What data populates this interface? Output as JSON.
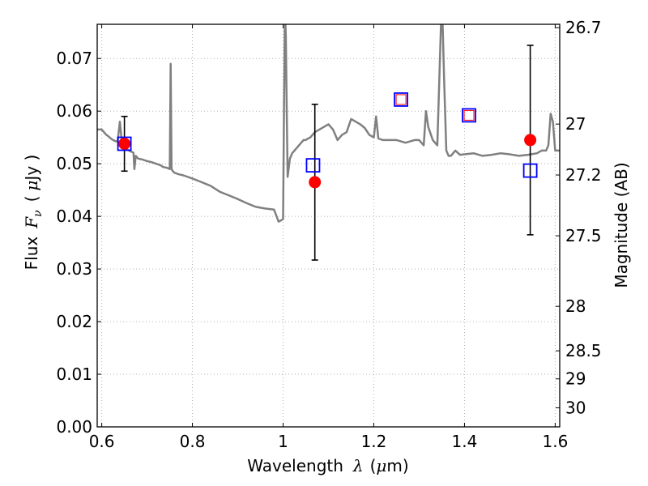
{
  "chart_data": {
    "type": "scatter",
    "xlabel_prefix": "Wavelength",
    "xlabel_symbol": "λ",
    "xlabel_unit_open": "(",
    "xlabel_unit_mu": "μ",
    "xlabel_unit_rest": "m)",
    "ylabel_prefix": "Flux",
    "ylabel_symbol_main": "F",
    "ylabel_symbol_sub": "ν",
    "ylabel_unit_open": "(",
    "ylabel_unit_mu": "μ",
    "ylabel_unit_rest": "Jy )",
    "y2label": "Magnitude (AB)",
    "xlim": [
      0.59,
      1.61
    ],
    "ylim": [
      0.0,
      0.0765
    ],
    "xticks": [
      0.6,
      0.8,
      1.0,
      1.2,
      1.4,
      1.6
    ],
    "xtick_labels": [
      "0.6",
      "0.8",
      "1",
      "1.2",
      "1.4",
      "1.6"
    ],
    "yticks": [
      0.0,
      0.01,
      0.02,
      0.03,
      0.04,
      0.05,
      0.06,
      0.07
    ],
    "ytick_labels": [
      "0.00",
      "0.01",
      "0.02",
      "0.03",
      "0.04",
      "0.05",
      "0.06",
      "0.07"
    ],
    "y2ticks": [
      {
        "mag": 26.7,
        "label": "26.7"
      },
      {
        "mag": 27,
        "label": "27"
      },
      {
        "mag": 27.2,
        "label": "27.2"
      },
      {
        "mag": 27.5,
        "label": "27.5"
      },
      {
        "mag": 28,
        "label": "28"
      },
      {
        "mag": 28.5,
        "label": "28.5"
      },
      {
        "mag": 29,
        "label": "29"
      },
      {
        "mag": 30,
        "label": "30"
      }
    ],
    "grid": true,
    "colors": {
      "spectrum": "#808080",
      "observed": "#ff0000",
      "model": "#0000ff",
      "errorbar": "#000000",
      "grid": "#b0b0b0"
    },
    "series": [
      {
        "name": "model spectrum",
        "kind": "line",
        "x": [
          0.59,
          0.6,
          0.605,
          0.61,
          0.615,
          0.62,
          0.625,
          0.63,
          0.635,
          0.64,
          0.645,
          0.65,
          0.655,
          0.66,
          0.665,
          0.67,
          0.672,
          0.675,
          0.68,
          0.69,
          0.7,
          0.71,
          0.72,
          0.73,
          0.735,
          0.74,
          0.745,
          0.75,
          0.752,
          0.754,
          0.756,
          0.758,
          0.76,
          0.77,
          0.78,
          0.8,
          0.82,
          0.84,
          0.86,
          0.88,
          0.9,
          0.92,
          0.94,
          0.96,
          0.98,
          0.99,
          0.995,
          1.0,
          1.002,
          1.004,
          1.006,
          1.008,
          1.01,
          1.015,
          1.02,
          1.025,
          1.03,
          1.035,
          1.04,
          1.045,
          1.05,
          1.055,
          1.06,
          1.07,
          1.08,
          1.09,
          1.1,
          1.11,
          1.12,
          1.13,
          1.14,
          1.15,
          1.16,
          1.17,
          1.18,
          1.19,
          1.2,
          1.205,
          1.21,
          1.22,
          1.23,
          1.25,
          1.27,
          1.29,
          1.3,
          1.31,
          1.315,
          1.32,
          1.33,
          1.34,
          1.35,
          1.355,
          1.36,
          1.365,
          1.37,
          1.38,
          1.39,
          1.4,
          1.42,
          1.44,
          1.46,
          1.48,
          1.5,
          1.52,
          1.54,
          1.56,
          1.57,
          1.58,
          1.585,
          1.59,
          1.595,
          1.6,
          1.61
        ],
        "y": [
          0.0565,
          0.0565,
          0.056,
          0.0555,
          0.0552,
          0.0548,
          0.0545,
          0.0543,
          0.0542,
          0.058,
          0.0535,
          0.053,
          0.0528,
          0.0525,
          0.0523,
          0.0521,
          0.049,
          0.0515,
          0.051,
          0.0508,
          0.0505,
          0.0503,
          0.05,
          0.0497,
          0.0494,
          0.0493,
          0.0492,
          0.049,
          0.069,
          0.049,
          0.0487,
          0.0485,
          0.0483,
          0.048,
          0.0478,
          0.0472,
          0.0465,
          0.0458,
          0.0447,
          0.044,
          0.0433,
          0.0425,
          0.0418,
          0.0415,
          0.0413,
          0.039,
          0.0392,
          0.0395,
          0.06,
          0.08,
          0.074,
          0.06,
          0.0475,
          0.051,
          0.052,
          0.0525,
          0.053,
          0.0535,
          0.054,
          0.0545,
          0.0545,
          0.0548,
          0.055,
          0.056,
          0.0565,
          0.057,
          0.0575,
          0.0565,
          0.0545,
          0.0555,
          0.056,
          0.0585,
          0.058,
          0.0575,
          0.0568,
          0.0555,
          0.055,
          0.059,
          0.0548,
          0.0545,
          0.0545,
          0.0545,
          0.054,
          0.0545,
          0.0545,
          0.0535,
          0.06,
          0.057,
          0.0545,
          0.0535,
          0.082,
          0.066,
          0.0525,
          0.0515,
          0.0515,
          0.0525,
          0.0517,
          0.0518,
          0.052,
          0.0515,
          0.0517,
          0.052,
          0.0518,
          0.0515,
          0.0517,
          0.052,
          0.0525,
          0.0525,
          0.0535,
          0.0595,
          0.058,
          0.0525,
          0.0525
        ]
      },
      {
        "name": "observed flux",
        "kind": "points",
        "marker": "circle",
        "x": [
          0.65,
          1.07,
          1.545
        ],
        "y": [
          0.0538,
          0.0465,
          0.0545
        ],
        "yerr": [
          0.0052,
          0.0148,
          0.018
        ]
      },
      {
        "name": "model photometry",
        "kind": "points",
        "marker": "square",
        "x": [
          0.65,
          1.066,
          1.26,
          1.41,
          1.545
        ],
        "y": [
          0.0538,
          0.0497,
          0.0622,
          0.0592,
          0.0487
        ]
      },
      {
        "name": "model photometry (inner)",
        "kind": "points",
        "marker": "small-square",
        "x": [
          1.26,
          1.41
        ],
        "y": [
          0.0622,
          0.0592
        ]
      }
    ]
  }
}
